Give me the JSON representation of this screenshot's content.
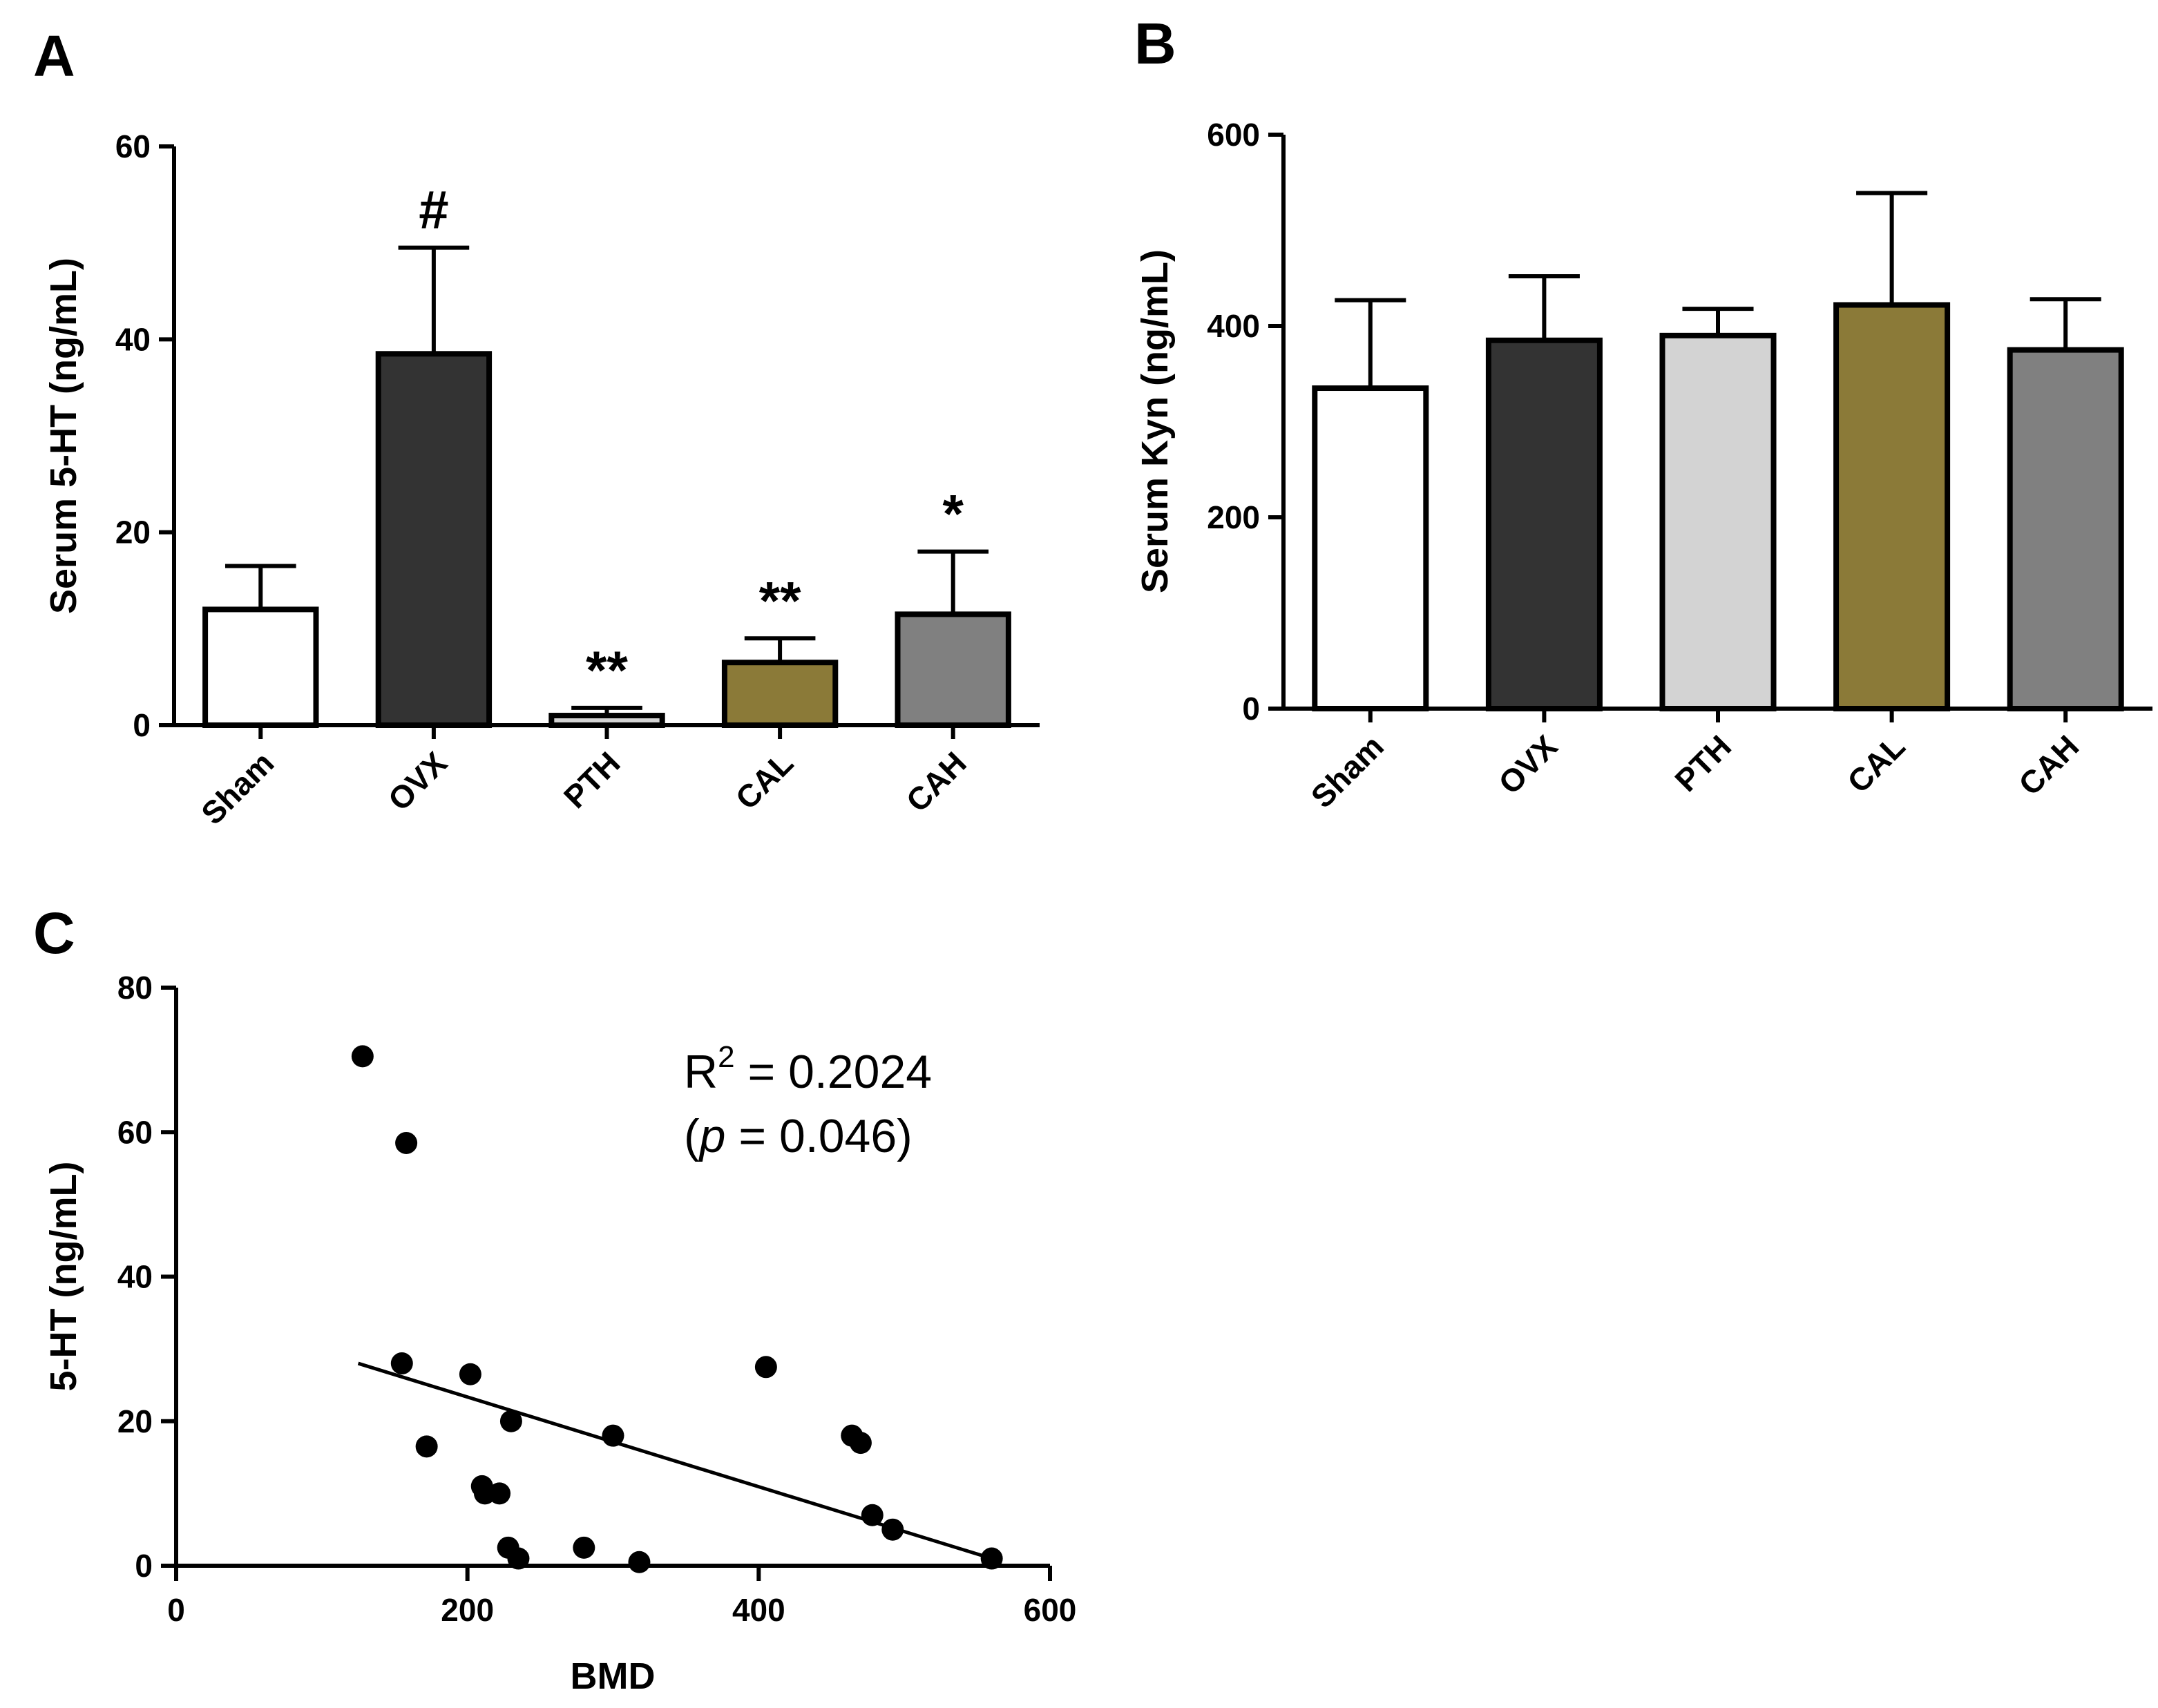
{
  "panels": {
    "A": "A",
    "B": "B",
    "C": "C"
  },
  "chart_data": [
    {
      "id": "A",
      "type": "bar",
      "title": "",
      "ylabel": "Serum 5-HT (ng/mL)",
      "xlabel": "",
      "categories": [
        "Sham",
        "OVX",
        "PTH",
        "CAL",
        "CAH"
      ],
      "values": [
        12,
        38.5,
        1,
        6.5,
        11.5
      ],
      "errors": [
        4.5,
        11,
        0.8,
        2.5,
        6.5
      ],
      "significance": [
        "",
        "#",
        "**",
        "**",
        "*"
      ],
      "colors": [
        "#ffffff",
        "#333333",
        "#d3d3d3",
        "#8b7a38",
        "#808080"
      ],
      "ylim": [
        0,
        60
      ],
      "yticks": [
        0,
        20,
        40,
        60
      ]
    },
    {
      "id": "B",
      "type": "bar",
      "title": "",
      "ylabel": "Serum Kyn (ng/mL)",
      "xlabel": "",
      "categories": [
        "Sham",
        "OVX",
        "PTH",
        "CAL",
        "CAH"
      ],
      "values": [
        335,
        385,
        390,
        422,
        375
      ],
      "errors": [
        92,
        67,
        28,
        117,
        53
      ],
      "significance": [
        "",
        "",
        "",
        "",
        ""
      ],
      "colors": [
        "#ffffff",
        "#333333",
        "#d3d3d3",
        "#8b7a38",
        "#808080"
      ],
      "ylim": [
        0,
        600
      ],
      "yticks": [
        0,
        200,
        400,
        600
      ]
    },
    {
      "id": "C",
      "type": "scatter",
      "title": "",
      "xlabel": "BMD",
      "ylabel": "5-HT (ng/mL)",
      "xlim": [
        0,
        600
      ],
      "ylim": [
        0,
        80
      ],
      "xticks": [
        0,
        200,
        400,
        600
      ],
      "yticks": [
        0,
        20,
        40,
        60,
        80
      ],
      "points": [
        {
          "x": 128,
          "y": 70.5
        },
        {
          "x": 158,
          "y": 58.5
        },
        {
          "x": 155,
          "y": 28
        },
        {
          "x": 202,
          "y": 26.5
        },
        {
          "x": 172,
          "y": 16.5
        },
        {
          "x": 230,
          "y": 20
        },
        {
          "x": 210,
          "y": 11
        },
        {
          "x": 212,
          "y": 10
        },
        {
          "x": 222,
          "y": 10
        },
        {
          "x": 228,
          "y": 2.5
        },
        {
          "x": 235,
          "y": 1
        },
        {
          "x": 280,
          "y": 2.5
        },
        {
          "x": 318,
          "y": 0.5
        },
        {
          "x": 300,
          "y": 18
        },
        {
          "x": 405,
          "y": 27.5
        },
        {
          "x": 464,
          "y": 18
        },
        {
          "x": 470,
          "y": 17
        },
        {
          "x": 478,
          "y": 7
        },
        {
          "x": 492,
          "y": 5
        },
        {
          "x": 560,
          "y": 1
        }
      ],
      "fit_line": {
        "x": [
          125,
          560
        ],
        "y": [
          28,
          1
        ]
      },
      "annotation": {
        "r2_prefix": "R",
        "r2_sup": "2",
        "r2_value": " = 0.2024",
        "p_open": "(",
        "p_symbol": "p",
        "p_value": " = 0.046)"
      }
    }
  ]
}
